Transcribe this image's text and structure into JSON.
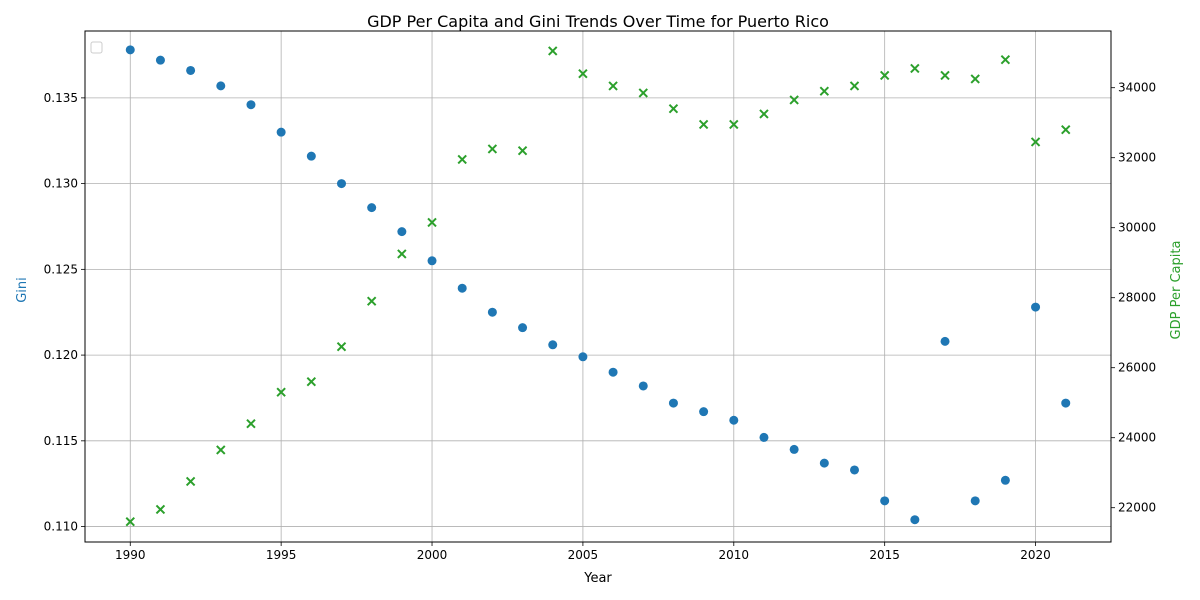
{
  "chart_data": {
    "type": "scatter",
    "title": "GDP Per Capita and Gini Trends Over Time for Puerto Rico",
    "xlabel": "Year",
    "ylabel_left": "Gini",
    "ylabel_right": "GDP Per Capita",
    "xlim": [
      1988.5,
      2022.5
    ],
    "ylim_left": [
      0.1091,
      0.1389
    ],
    "ylim_right": [
      21020,
      35620
    ],
    "x_ticks": [
      1990,
      1995,
      2000,
      2005,
      2010,
      2015,
      2020
    ],
    "y_left_ticks": [
      0.11,
      0.115,
      0.12,
      0.125,
      0.13,
      0.135
    ],
    "y_left_tick_labels": [
      "0.110",
      "0.115",
      "0.120",
      "0.125",
      "0.130",
      "0.135"
    ],
    "y_right_ticks": [
      22000,
      24000,
      26000,
      28000,
      30000,
      32000,
      34000
    ],
    "y_right_tick_labels": [
      "22000",
      "24000",
      "26000",
      "28000",
      "30000",
      "32000",
      "34000"
    ],
    "grid": true,
    "legend": "upper-left (empty)",
    "x": [
      1990,
      1991,
      1992,
      1993,
      1994,
      1995,
      1996,
      1997,
      1998,
      1999,
      2000,
      2001,
      2002,
      2003,
      2004,
      2005,
      2006,
      2007,
      2008,
      2009,
      2010,
      2011,
      2012,
      2013,
      2014,
      2015,
      2016,
      2017,
      2018,
      2019,
      2020,
      2021
    ],
    "series": [
      {
        "axis": "left",
        "marker": "circle",
        "color": "#1f77b4",
        "values": [
          0.1378,
          0.1372,
          0.1366,
          0.1357,
          0.1346,
          0.133,
          0.1316,
          0.13,
          0.1286,
          0.1272,
          0.1255,
          0.1239,
          0.1225,
          0.1216,
          0.1206,
          0.1199,
          0.119,
          0.1182,
          0.1172,
          0.1167,
          0.1162,
          0.1152,
          0.1145,
          0.1137,
          0.1133,
          0.1115,
          0.1104,
          0.1208,
          0.1115,
          0.1127,
          0.1228,
          0.1172
        ]
      },
      {
        "axis": "right",
        "marker": "x",
        "color": "#2ca02c",
        "values": [
          21600,
          21950,
          22750,
          23650,
          24400,
          25300,
          25600,
          26600,
          27900,
          29250,
          30150,
          31950,
          32250,
          32200,
          35050,
          34400,
          34050,
          33850,
          33400,
          32950,
          32950,
          33250,
          33650,
          33900,
          34050,
          34350,
          34550,
          34350,
          34250,
          34800,
          32450,
          32800
        ]
      }
    ]
  }
}
